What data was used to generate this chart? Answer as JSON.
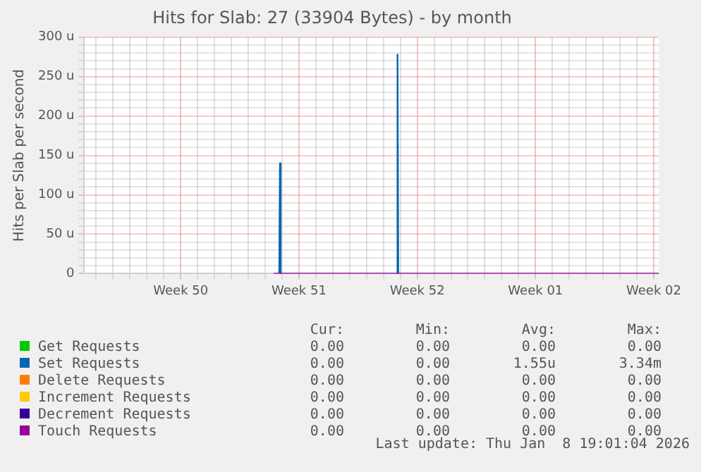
{
  "chart_data": {
    "type": "line",
    "title": "Hits for Slab: 27 (33904 Bytes) - by month",
    "ylabel": "Hits per Slab per second",
    "xlim": [
      "2025-12-05T07:00",
      "2026-01-08T07:00"
    ],
    "xticks": [
      {
        "value": "2025-12-06",
        "label": null
      },
      {
        "value": "2025-12-07",
        "label": null
      },
      {
        "value": "2025-12-08",
        "label": null
      },
      {
        "value": "2025-12-09",
        "label": null
      },
      {
        "value": "2025-12-10",
        "label": null
      },
      {
        "value": "2025-12-11",
        "label": "Week 50"
      },
      {
        "value": "2025-12-12",
        "label": null
      },
      {
        "value": "2025-12-13",
        "label": null
      },
      {
        "value": "2025-12-14",
        "label": null
      },
      {
        "value": "2025-12-15",
        "label": null
      },
      {
        "value": "2025-12-16",
        "label": null
      },
      {
        "value": "2025-12-17",
        "label": null
      },
      {
        "value": "2025-12-18",
        "label": "Week 51"
      },
      {
        "value": "2025-12-19",
        "label": null
      },
      {
        "value": "2025-12-20",
        "label": null
      },
      {
        "value": "2025-12-21",
        "label": null
      },
      {
        "value": "2025-12-22",
        "label": null
      },
      {
        "value": "2025-12-23",
        "label": null
      },
      {
        "value": "2025-12-24",
        "label": null
      },
      {
        "value": "2025-12-25",
        "label": "Week 52"
      },
      {
        "value": "2025-12-26",
        "label": null
      },
      {
        "value": "2025-12-27",
        "label": null
      },
      {
        "value": "2025-12-28",
        "label": null
      },
      {
        "value": "2025-12-29",
        "label": null
      },
      {
        "value": "2025-12-30",
        "label": null
      },
      {
        "value": "2025-12-31",
        "label": null
      },
      {
        "value": "2026-01-01",
        "label": "Week 01"
      },
      {
        "value": "2026-01-02",
        "label": null
      },
      {
        "value": "2026-01-03",
        "label": null
      },
      {
        "value": "2026-01-04",
        "label": null
      },
      {
        "value": "2026-01-05",
        "label": null
      },
      {
        "value": "2026-01-06",
        "label": null
      },
      {
        "value": "2026-01-07",
        "label": null
      },
      {
        "value": "2026-01-08",
        "label": "Week 02"
      }
    ],
    "ylim": [
      0,
      300
    ],
    "yticks": [
      {
        "value": 0,
        "label": "0"
      },
      {
        "value": 10,
        "label": null
      },
      {
        "value": 20,
        "label": null
      },
      {
        "value": 30,
        "label": null
      },
      {
        "value": 40,
        "label": null
      },
      {
        "value": 50,
        "label": "50 u"
      },
      {
        "value": 60,
        "label": null
      },
      {
        "value": 70,
        "label": null
      },
      {
        "value": 80,
        "label": null
      },
      {
        "value": 90,
        "label": null
      },
      {
        "value": 100,
        "label": "100 u"
      },
      {
        "value": 110,
        "label": null
      },
      {
        "value": 120,
        "label": null
      },
      {
        "value": 130,
        "label": null
      },
      {
        "value": 140,
        "label": null
      },
      {
        "value": 150,
        "label": "150 u"
      },
      {
        "value": 160,
        "label": null
      },
      {
        "value": 170,
        "label": null
      },
      {
        "value": 180,
        "label": null
      },
      {
        "value": 190,
        "label": null
      },
      {
        "value": 200,
        "label": "200 u"
      },
      {
        "value": 210,
        "label": null
      },
      {
        "value": 220,
        "label": null
      },
      {
        "value": 230,
        "label": null
      },
      {
        "value": 240,
        "label": null
      },
      {
        "value": 250,
        "label": "250 u"
      },
      {
        "value": 260,
        "label": null
      },
      {
        "value": 270,
        "label": null
      },
      {
        "value": 280,
        "label": null
      },
      {
        "value": 290,
        "label": null
      },
      {
        "value": 300,
        "label": "300 u"
      }
    ],
    "grid": true,
    "legend": "bottom",
    "marker": "none",
    "line_style": "solid",
    "series": [
      {
        "name": "Get Requests",
        "color": "#00cc00",
        "values": [
          null
        ]
      },
      {
        "name": "Set Requests",
        "color": "#0066b3",
        "x": [
          "2025-12-16T20:00",
          "2025-12-16T21:00",
          "2025-12-16T22:00",
          "2025-12-20T00:00",
          "2025-12-23T19:00",
          "2025-12-23T20:00",
          "2025-12-23T21:00"
        ],
        "values": [
          0,
          140,
          0,
          null,
          0,
          278,
          0
        ]
      },
      {
        "name": "Delete Requests",
        "color": "#ff8000",
        "values": [
          null
        ]
      },
      {
        "name": "Increment Requests",
        "color": "#ffcc00",
        "values": [
          null
        ]
      },
      {
        "name": "Decrement Requests",
        "color": "#330099",
        "values": [
          null
        ]
      },
      {
        "name": "Touch Requests",
        "color": "#990099",
        "x": [
          "2025-12-16T12:00",
          "2026-01-08T07:00"
        ],
        "values": [
          0,
          0
        ]
      }
    ],
    "annotations": [
      "Cur:",
      "Min:",
      "Avg:",
      "Max:",
      "0.00",
      "0.00",
      "0.00",
      "0.00",
      "0.00",
      "0.00",
      "1.55u",
      "3.34m",
      "0.00",
      "0.00",
      "0.00",
      "0.00",
      "0.00",
      "0.00",
      "0.00",
      "0.00",
      "0.00",
      "0.00",
      "0.00",
      "0.00",
      "0.00",
      "0.00",
      "0.00",
      "0.00",
      "Last update: Thu Jan  8 19:01:04 2026"
    ]
  }
}
